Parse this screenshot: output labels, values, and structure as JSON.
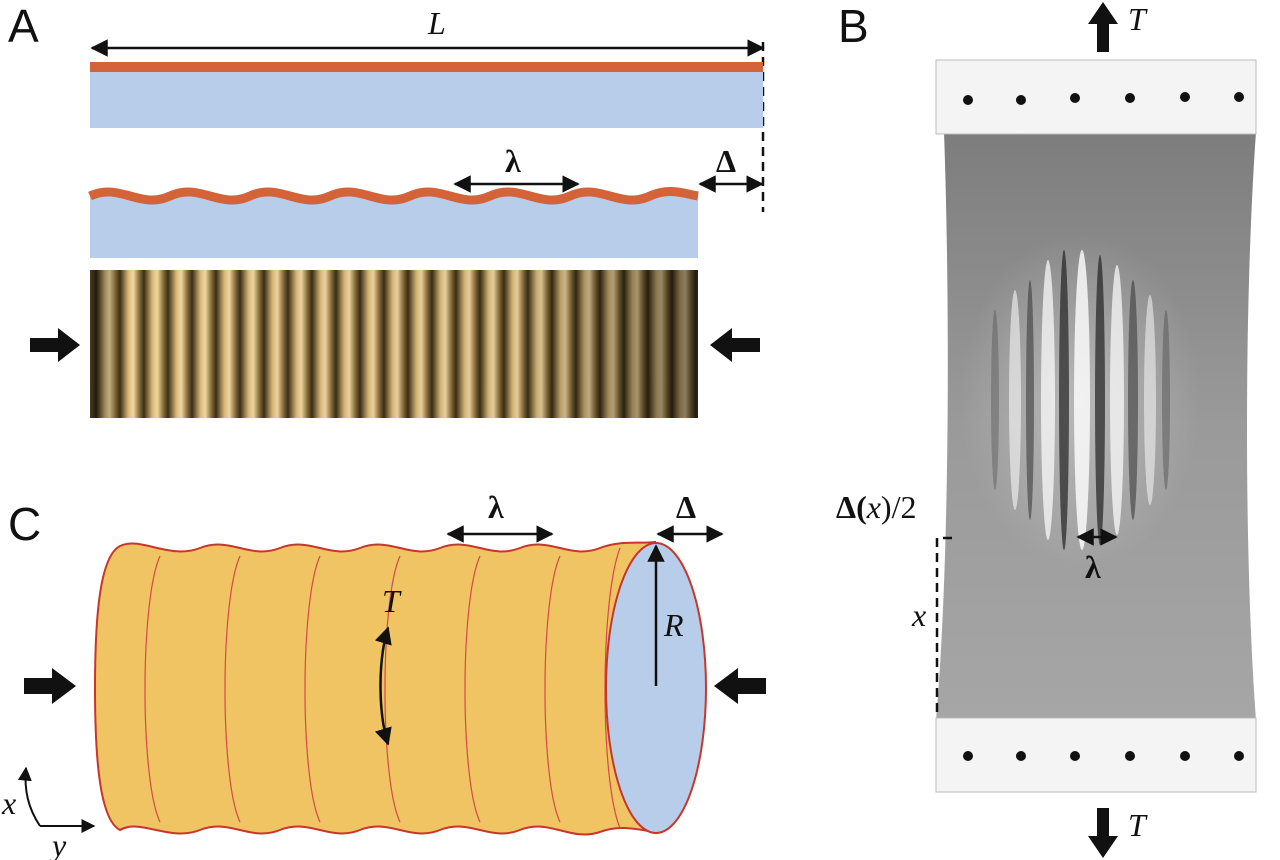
{
  "panels": {
    "a": {
      "letter": "A",
      "length_label": "L",
      "wavelength_label": "λ",
      "shortening_label": "Δ"
    },
    "b": {
      "letter": "B",
      "tension_top_label": "T",
      "tension_bottom_label": "T",
      "edge_label_delta": "Δ(",
      "edge_label_x": "x",
      "edge_label_tail": ")/2",
      "position_label": "x",
      "wavelength_label": "λ"
    },
    "c": {
      "letter": "C",
      "wavelength_label": "λ",
      "shortening_label": "Δ",
      "tension_label": "T",
      "radius_label": "R",
      "axis_x_label": "x",
      "axis_y_label": "y"
    }
  },
  "colors": {
    "skin": "#d4633a",
    "substrate": "#b7cdea",
    "cylinder_fill": "#f0c462",
    "cylinder_outline": "#c8362a",
    "arrow": "#111111",
    "clamp": "#f4f4f4",
    "sheet": "#8e8e8e"
  }
}
